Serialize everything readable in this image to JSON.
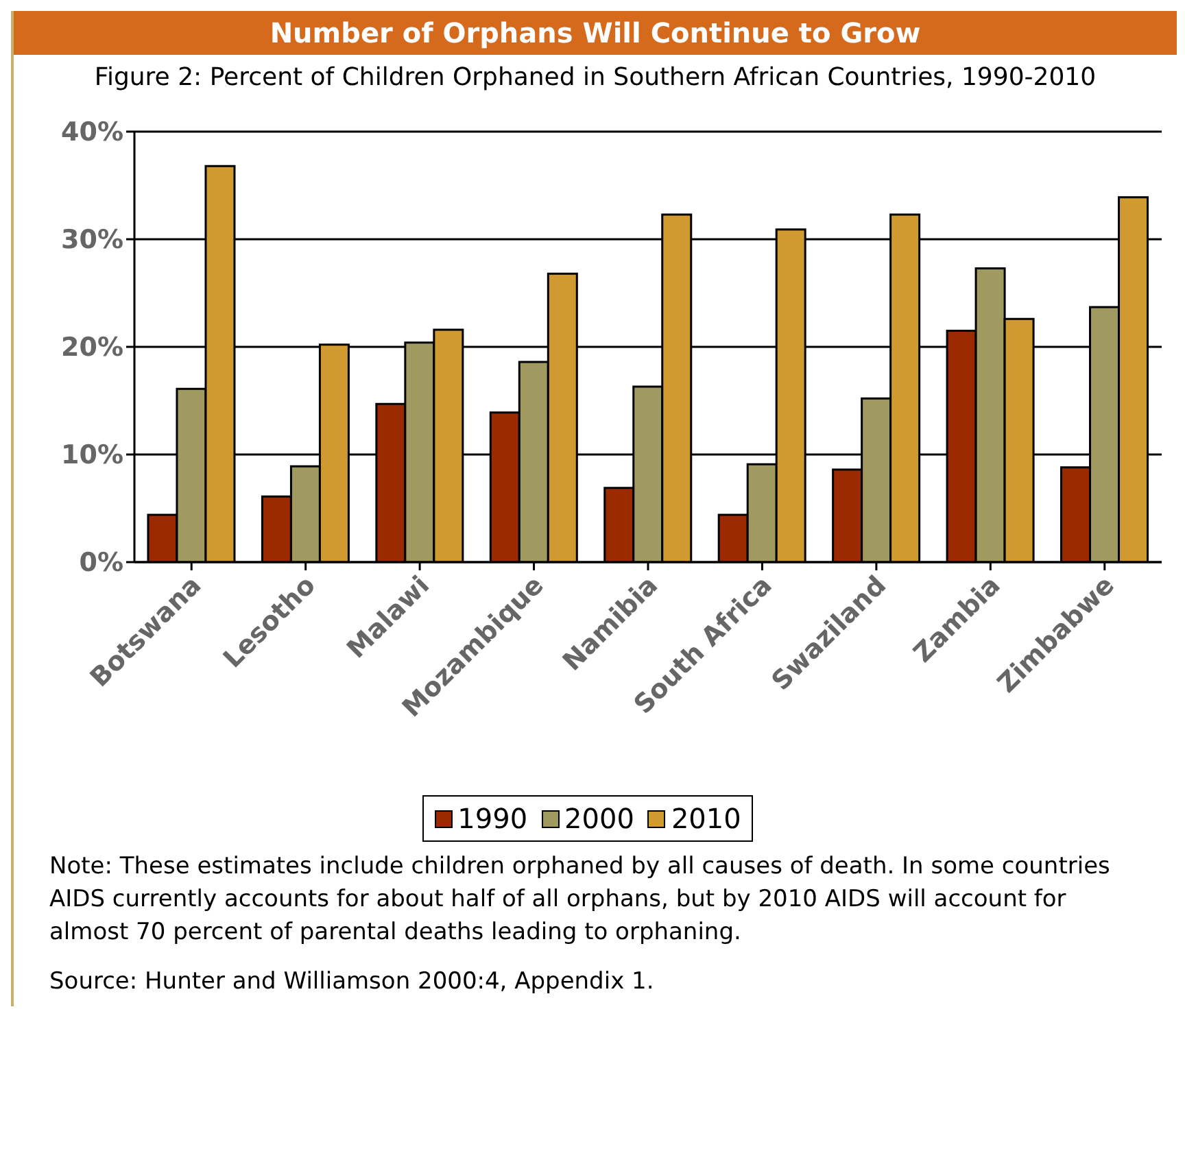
{
  "chart_data": {
    "type": "bar",
    "title": "Number of Orphans Will Continue to Grow",
    "subtitle": "Figure 2:  Percent of Children Orphaned in Southern African Countries, 1990-2010",
    "categories": [
      "Botswana",
      "Lesotho",
      "Malawi",
      "Mozambique",
      "Namibia",
      "South Africa",
      "Swaziland",
      "Zambia",
      "Zimbabwe"
    ],
    "series": [
      {
        "name": "1990",
        "color": "#9c2a00",
        "values": [
          4.4,
          6.1,
          14.7,
          13.9,
          6.9,
          4.4,
          8.6,
          21.5,
          8.8
        ]
      },
      {
        "name": "2000",
        "color": "#a09a60",
        "values": [
          16.1,
          8.9,
          20.4,
          18.6,
          16.3,
          9.1,
          15.2,
          27.3,
          23.7
        ]
      },
      {
        "name": "2010",
        "color": "#d09a30",
        "values": [
          36.8,
          20.2,
          21.6,
          26.8,
          32.3,
          30.9,
          32.3,
          22.6,
          33.9
        ]
      }
    ],
    "ylim": [
      0,
      40
    ],
    "yticks": [
      {
        "value": 0,
        "label": "0%"
      },
      {
        "value": 10,
        "label": "10%"
      },
      {
        "value": 20,
        "label": "20%"
      },
      {
        "value": 30,
        "label": "30%"
      },
      {
        "value": 40,
        "label": "40%"
      }
    ],
    "grid": "y",
    "legend": "bottom",
    "annotations": [
      "Note: These estimates include children orphaned by all causes of death. In some countries AIDS currently accounts for about half of all orphans, but by 2010 AIDS will account for almost 70 percent of parental deaths leading to orphaning.",
      "Source: Hunter and Williamson 2000:4, Appendix 1."
    ]
  }
}
